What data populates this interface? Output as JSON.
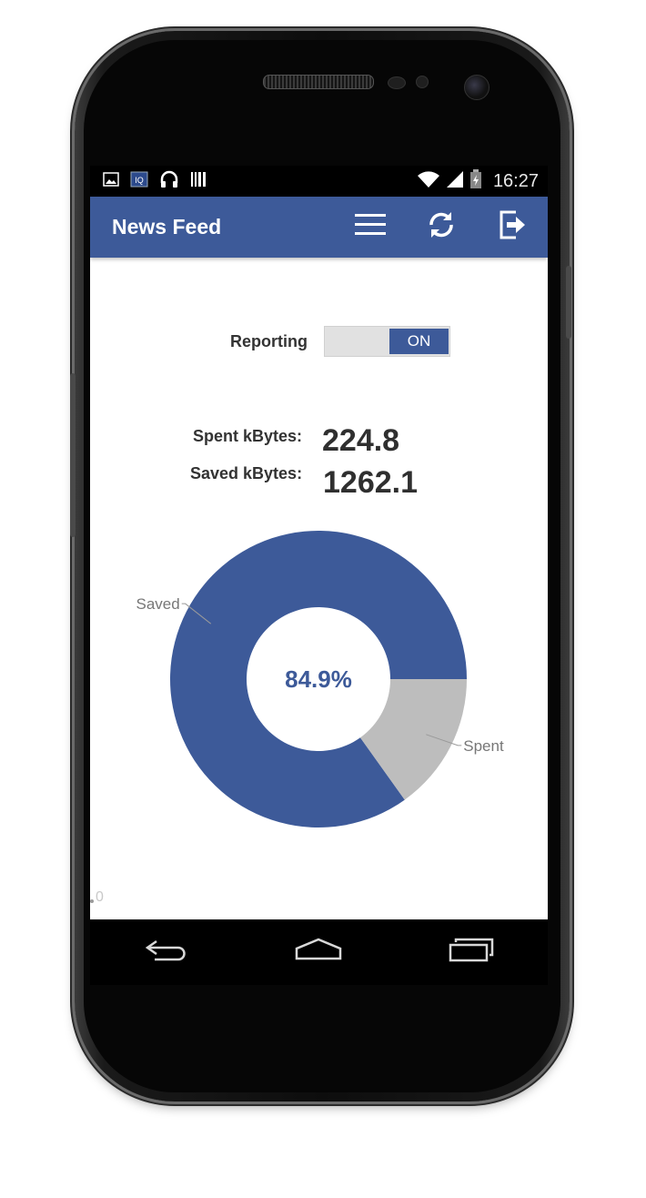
{
  "status_bar": {
    "time": "16:27",
    "left_icons": [
      "image-icon",
      "keyboard-icon",
      "headphones-icon",
      "barcode-icon"
    ],
    "right_icons": [
      "wifi-icon",
      "signal-icon",
      "battery-icon"
    ]
  },
  "app_bar": {
    "title": "News Feed",
    "actions": [
      "menu-icon",
      "refresh-icon",
      "logout-icon"
    ],
    "color": "#3d5a99"
  },
  "reporting": {
    "label": "Reporting",
    "toggle_state": "ON"
  },
  "stats": {
    "spent_label": "Spent kBytes:",
    "spent_value": "224.8",
    "saved_label": "Saved kBytes:",
    "saved_value": "1262.1"
  },
  "chart_data": {
    "type": "pie",
    "donut": true,
    "center_text": "84.9%",
    "slices": [
      {
        "label": "Saved",
        "value": 1262.1,
        "color": "#3d5a99"
      },
      {
        "label": "Spent",
        "value": 224.8,
        "color": "#bdbdbd"
      }
    ]
  },
  "misc": {
    "corner_value": "0"
  },
  "nav_bar": {
    "buttons": [
      "back-icon",
      "home-icon",
      "recent-apps-icon"
    ]
  }
}
